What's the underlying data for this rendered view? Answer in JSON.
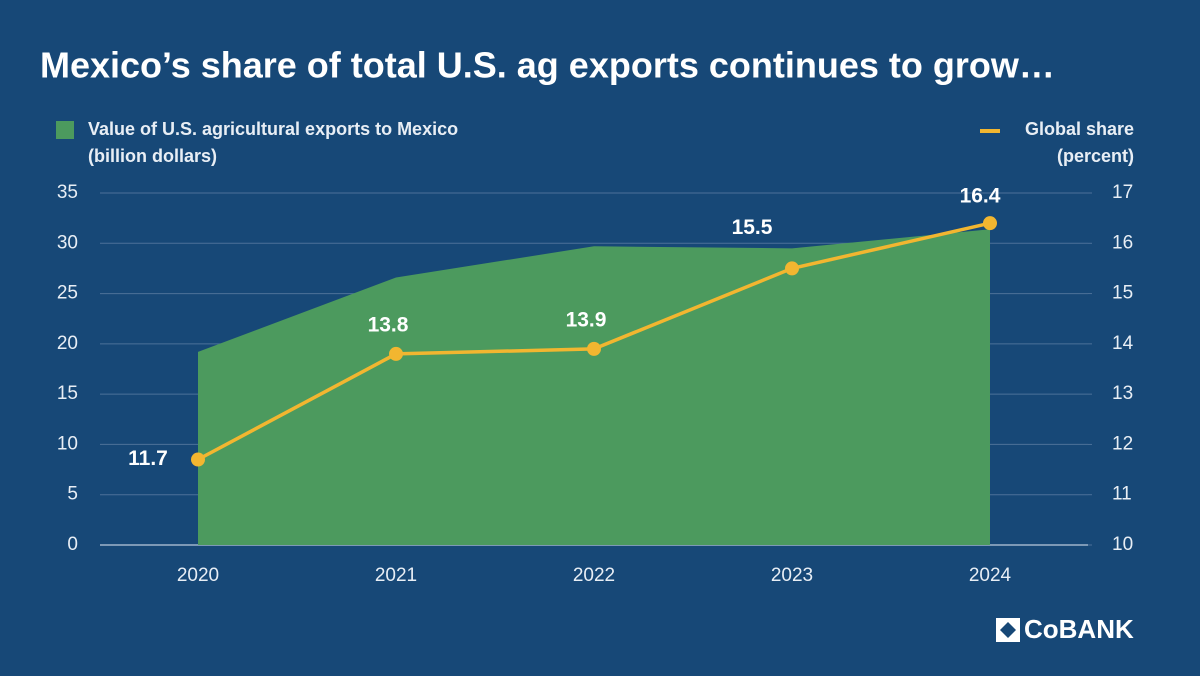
{
  "chart_data": {
    "type": "combo",
    "title": "Mexico’s share of total U.S. ag exports continues to grow…",
    "categories": [
      "2020",
      "2021",
      "2022",
      "2023",
      "2024"
    ],
    "series": [
      {
        "name": "Value of U.S. agricultural exports to Mexico",
        "unit": "(billion dollars)",
        "type": "area",
        "color": "#4c9a5e",
        "values": [
          19.2,
          26.6,
          29.7,
          29.5,
          31.4
        ]
      },
      {
        "name": "Global share",
        "unit": "(percent)",
        "type": "line",
        "axis": "y2",
        "color": "#f2b630",
        "values": [
          11.7,
          13.8,
          13.9,
          15.5,
          16.4
        ]
      }
    ],
    "ylim": [
      0,
      35
    ],
    "yticks": [
      0,
      5,
      10,
      15,
      20,
      25,
      30,
      35
    ],
    "y2lim": [
      10,
      17
    ],
    "y2ticks": [
      10,
      11,
      12,
      13,
      14,
      15,
      16,
      17
    ],
    "grid": true,
    "logo": "CoBANK"
  }
}
